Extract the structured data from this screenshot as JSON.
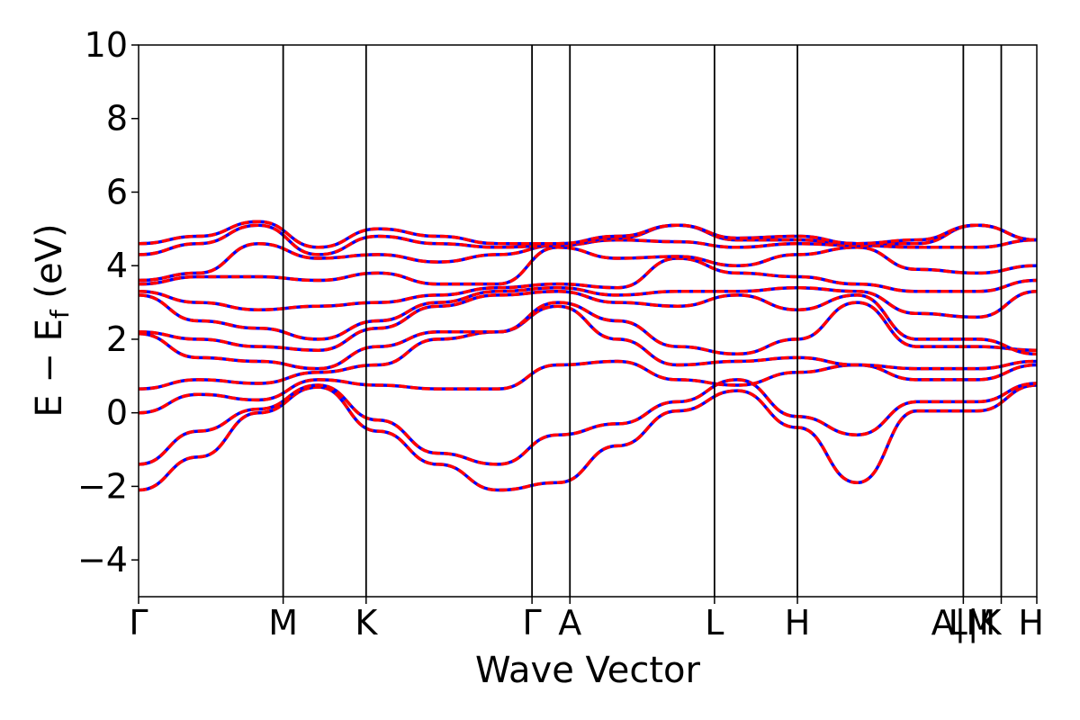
{
  "chart_data": {
    "type": "line",
    "title": "",
    "xlabel": "Wave Vector",
    "ylabel": {
      "prefix": "E − E",
      "subscript": "f",
      "suffix": " (eV)"
    },
    "ylim": [
      -5,
      10
    ],
    "y_ticks": [
      "−4",
      "−2",
      "0",
      "2",
      "4",
      "6",
      "8",
      "10"
    ],
    "y_tick_values": [
      -4,
      -2,
      0,
      2,
      4,
      6,
      8,
      10
    ],
    "grid": false,
    "legend": "none",
    "x_range": [
      0,
      3.79
    ],
    "high_symmetry_points": [
      {
        "label": "Γ",
        "x": 0.0
      },
      {
        "label": "M",
        "x": 0.61
      },
      {
        "label": "K",
        "x": 0.96
      },
      {
        "label": "Γ",
        "x": 1.66
      },
      {
        "label": "A",
        "x": 1.82
      },
      {
        "label": "L",
        "x": 2.43
      },
      {
        "label": "H",
        "x": 2.78
      },
      {
        "label": "A|M",
        "x": 3.48
      },
      {
        "label": "L|K",
        "x": 3.64
      },
      {
        "label": "H",
        "x": 3.79
      }
    ],
    "colors": {
      "spin_up": "#ff0000",
      "spin_down": "#0000ff"
    },
    "bands": [
      [
        -2.1,
        -1.2,
        0.0,
        0.7,
        -0.5,
        -1.4,
        -2.1,
        -1.9,
        -0.9,
        0.05,
        0.6,
        -0.4,
        -1.9,
        0.05,
        0.05,
        0.75
      ],
      [
        -1.4,
        -0.5,
        0.1,
        0.75,
        -0.2,
        -1.1,
        -1.4,
        -0.6,
        -0.3,
        0.3,
        0.9,
        -0.1,
        -0.6,
        0.3,
        0.3,
        0.8
      ],
      [
        0.0,
        0.5,
        0.35,
        0.9,
        0.75,
        0.65,
        0.65,
        1.3,
        1.4,
        0.9,
        0.75,
        1.1,
        1.3,
        0.9,
        0.9,
        1.3
      ],
      [
        0.65,
        0.9,
        0.8,
        1.1,
        1.3,
        2.0,
        2.2,
        2.9,
        2.0,
        1.3,
        1.4,
        1.5,
        1.3,
        1.2,
        1.2,
        1.4
      ],
      [
        2.15,
        1.5,
        1.4,
        1.2,
        1.8,
        2.2,
        2.2,
        3.0,
        2.5,
        1.8,
        1.6,
        2.0,
        3.0,
        1.8,
        1.8,
        1.7
      ],
      [
        2.2,
        2.0,
        1.8,
        1.7,
        2.3,
        2.9,
        3.2,
        3.3,
        3.0,
        2.9,
        3.2,
        2.8,
        3.2,
        2.0,
        2.0,
        1.6
      ],
      [
        3.2,
        2.5,
        2.3,
        2.0,
        2.5,
        3.0,
        3.3,
        3.4,
        3.2,
        3.3,
        3.3,
        3.4,
        3.3,
        2.7,
        2.6,
        3.3
      ],
      [
        3.3,
        3.0,
        2.8,
        2.9,
        3.0,
        3.2,
        3.4,
        3.5,
        3.4,
        4.2,
        3.8,
        3.7,
        3.5,
        3.3,
        3.3,
        3.6
      ],
      [
        3.5,
        3.7,
        3.7,
        3.6,
        3.8,
        3.5,
        3.5,
        4.5,
        4.2,
        4.25,
        4.0,
        4.3,
        4.5,
        3.9,
        3.8,
        4.0
      ],
      [
        3.6,
        3.8,
        4.6,
        4.2,
        4.3,
        4.1,
        4.3,
        4.55,
        4.7,
        4.65,
        4.5,
        4.6,
        4.55,
        4.5,
        4.5,
        4.7
      ],
      [
        4.3,
        4.6,
        5.1,
        4.3,
        4.8,
        4.6,
        4.5,
        4.55,
        4.75,
        5.1,
        4.7,
        4.7,
        4.6,
        4.6,
        5.1,
        4.7
      ],
      [
        4.6,
        4.8,
        5.2,
        4.5,
        5.0,
        4.8,
        4.6,
        4.6,
        4.8,
        5.1,
        4.75,
        4.8,
        4.6,
        4.7,
        5.1,
        4.7
      ]
    ]
  }
}
